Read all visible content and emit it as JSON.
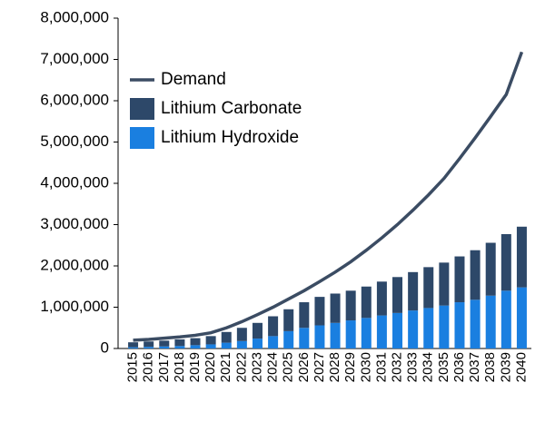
{
  "chart_data": {
    "type": "bar",
    "stacked": true,
    "categories": [
      "2015",
      "2016",
      "2017",
      "2018",
      "2019",
      "2020",
      "2021",
      "2022",
      "2023",
      "2024",
      "2025",
      "2026",
      "2027",
      "2028",
      "2029",
      "2030",
      "2031",
      "2032",
      "2033",
      "2034",
      "2035",
      "2036",
      "2037",
      "2038",
      "2039",
      "2040"
    ],
    "series": [
      {
        "name": "Demand",
        "type": "line",
        "color": "#3b4c63",
        "values": [
          200000,
          220000,
          250000,
          280000,
          320000,
          380000,
          500000,
          650000,
          820000,
          1000000,
          1200000,
          1400000,
          1620000,
          1850000,
          2100000,
          2380000,
          2680000,
          3000000,
          3350000,
          3720000,
          4120000,
          4600000,
          5100000,
          5620000,
          6150000,
          7180000
        ]
      },
      {
        "name": "Lithium Carbonate",
        "type": "bar",
        "color": "#2d4869",
        "values": [
          120000,
          130000,
          140000,
          160000,
          170000,
          200000,
          260000,
          320000,
          380000,
          480000,
          530000,
          620000,
          690000,
          710000,
          720000,
          760000,
          820000,
          870000,
          930000,
          990000,
          1040000,
          1110000,
          1200000,
          1280000,
          1370000,
          1470000
        ]
      },
      {
        "name": "Lithium Hydroxide",
        "type": "bar",
        "color": "#1a7fe0",
        "values": [
          30000,
          40000,
          50000,
          60000,
          80000,
          100000,
          140000,
          180000,
          240000,
          300000,
          420000,
          500000,
          560000,
          620000,
          680000,
          740000,
          800000,
          860000,
          920000,
          980000,
          1040000,
          1120000,
          1180000,
          1280000,
          1400000,
          1480000
        ]
      }
    ],
    "ylim": [
      0,
      8000000
    ],
    "yticks": [
      {
        "value": 0,
        "label": "0"
      },
      {
        "value": 1000000,
        "label": "1,000,000"
      },
      {
        "value": 2000000,
        "label": "2,000,000"
      },
      {
        "value": 3000000,
        "label": "3,000,000"
      },
      {
        "value": 4000000,
        "label": "4,000,000"
      },
      {
        "value": 5000000,
        "label": "5,000,000"
      },
      {
        "value": 6000000,
        "label": "6,000,000"
      },
      {
        "value": 7000000,
        "label": "7,000,000"
      },
      {
        "value": 8000000,
        "label": "8,000,000"
      }
    ],
    "legend": "top-left"
  }
}
